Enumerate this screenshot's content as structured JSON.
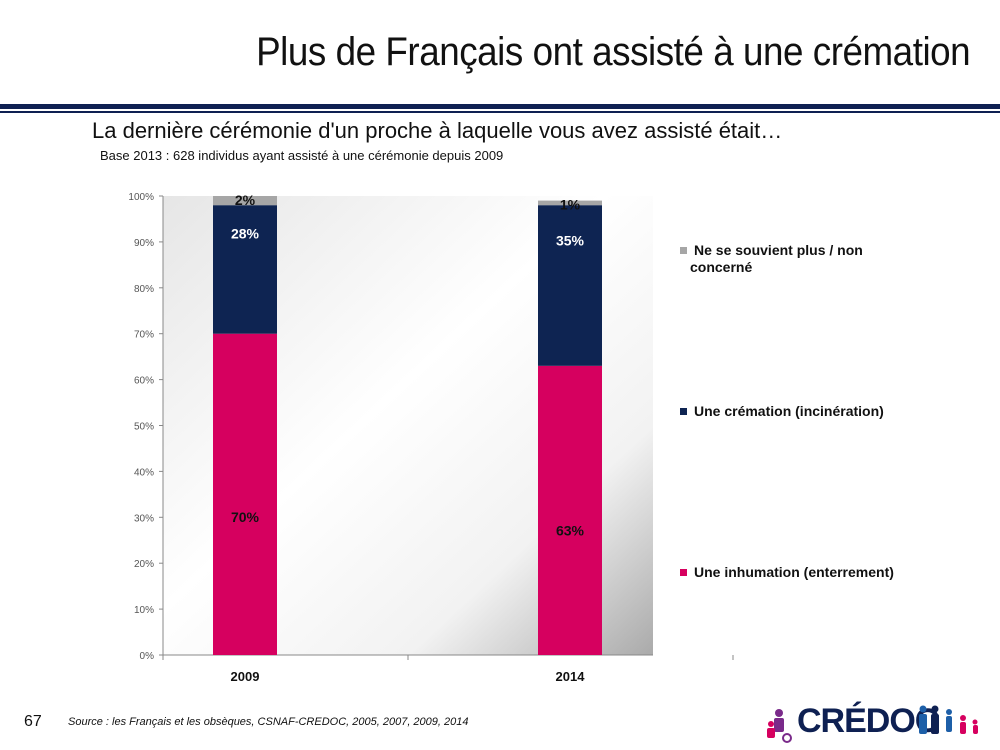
{
  "header": {
    "title": "Plus de Français ont assisté à une crémation",
    "subtitle": "La dernière cérémonie d'un proche à laquelle vous avez assisté était…",
    "base_note": "Base 2013 : 628 individus ayant assisté à une cérémonie depuis 2009"
  },
  "footer": {
    "page_number": "67",
    "source": "Source : les Français et les obsèques, CSNAF-CREDOC, 2005, 2007, 2009, 2014",
    "logo_text": "CRÉDOC"
  },
  "chart_data": {
    "type": "bar",
    "stacked": true,
    "categories": [
      "2009",
      "2014"
    ],
    "series": [
      {
        "name": "Une inhumation (enterrement)",
        "values": [
          70,
          63
        ],
        "labels": [
          "70%",
          "63%"
        ],
        "color": "#d6005f",
        "label_color": "#111111"
      },
      {
        "name": "Une crémation (incinération)",
        "values": [
          28,
          35
        ],
        "labels": [
          "28%",
          "35%"
        ],
        "color": "#0e2452",
        "label_color": "#ffffff"
      },
      {
        "name": "Ne se souvient plus / non concerné",
        "values": [
          2,
          1
        ],
        "labels": [
          "2%",
          "1%"
        ],
        "color": "#a6a6a6",
        "label_color": "#111111"
      }
    ],
    "ylim": [
      0,
      100
    ],
    "yticks": [
      "0%",
      "10%",
      "20%",
      "30%",
      "40%",
      "50%",
      "60%",
      "70%",
      "80%",
      "90%",
      "100%"
    ],
    "legend": [
      "Ne se souvient plus / non concerné",
      "Une crémation (incinération)",
      "Une inhumation (enterrement)"
    ],
    "legend_position": "right",
    "grid": false
  }
}
